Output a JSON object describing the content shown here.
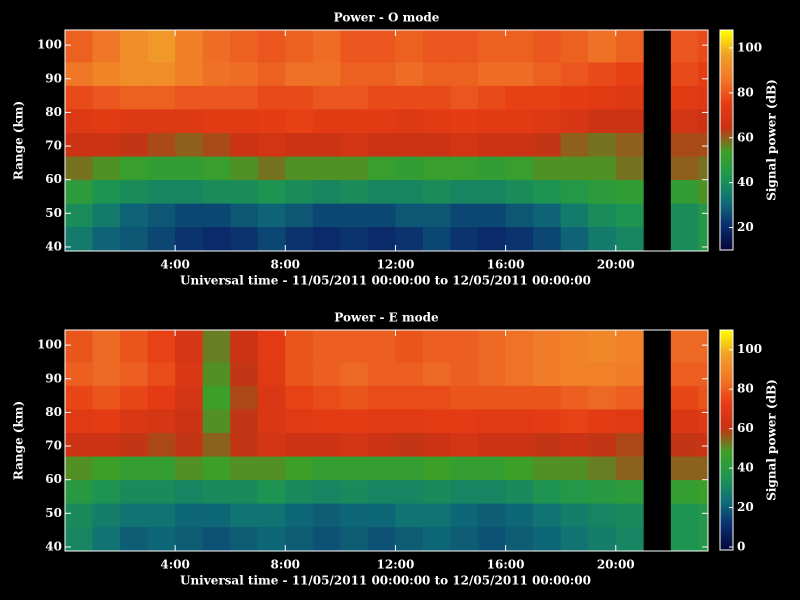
{
  "chart_data": [
    {
      "type": "heatmap",
      "title": "Power - O mode",
      "xlabel": "Universal time - 11/05/2011 00:00:00 to 12/05/2011 00:00:00",
      "ylabel": "Range (km)",
      "colorbar_label": "Signal power (dB)",
      "xlim": [
        0,
        23.35
      ],
      "ylim": [
        38.8,
        104.5
      ],
      "xticks": [
        {
          "value": 4,
          "label": "4:00"
        },
        {
          "value": 8,
          "label": "8:00"
        },
        {
          "value": 12,
          "label": "12:00"
        },
        {
          "value": 16,
          "label": "16:00"
        },
        {
          "value": 20,
          "label": "20:00"
        }
      ],
      "yticks": [
        40,
        50,
        60,
        70,
        80,
        90,
        100
      ],
      "xbins": [
        0,
        1,
        2,
        3,
        4,
        5,
        6,
        7,
        8,
        9,
        10,
        11,
        12,
        13,
        14,
        15,
        16,
        17,
        18,
        19,
        20,
        21,
        22,
        23,
        24
      ],
      "ybins": [
        38.8,
        46,
        53,
        60,
        67,
        74,
        81,
        88,
        95,
        104.5
      ],
      "zlim": [
        10,
        108
      ],
      "zticks": [
        20,
        40,
        60,
        80,
        100
      ],
      "colorscale": [
        "#050535",
        "#0a2d6e",
        "#0f6e78",
        "#1e9650",
        "#3ca028",
        "#c83214",
        "#e63c14",
        "#f07828",
        "#f0a028",
        "#ffff00"
      ],
      "z": [
        [
          35,
          30,
          28,
          25,
          22,
          20,
          22,
          25,
          22,
          20,
          22,
          20,
          22,
          25,
          22,
          20,
          22,
          25,
          30,
          35,
          38,
          null,
          40,
          45
        ],
        [
          40,
          35,
          30,
          28,
          25,
          25,
          28,
          30,
          28,
          25,
          25,
          25,
          28,
          28,
          25,
          25,
          28,
          30,
          35,
          40,
          42,
          null,
          40,
          45
        ],
        [
          48,
          42,
          40,
          38,
          38,
          40,
          40,
          42,
          40,
          38,
          40,
          38,
          38,
          40,
          38,
          38,
          40,
          42,
          45,
          48,
          50,
          null,
          50,
          55
        ],
        [
          58,
          55,
          52,
          50,
          50,
          52,
          55,
          58,
          55,
          55,
          55,
          52,
          50,
          52,
          52,
          50,
          52,
          55,
          55,
          55,
          58,
          null,
          60,
          58
        ],
        [
          66,
          65,
          64,
          62,
          60,
          62,
          65,
          68,
          66,
          65,
          68,
          66,
          65,
          66,
          68,
          66,
          66,
          64,
          60,
          58,
          60,
          null,
          62,
          62
        ],
        [
          72,
          74,
          72,
          72,
          72,
          74,
          74,
          75,
          76,
          74,
          74,
          74,
          72,
          74,
          75,
          74,
          74,
          72,
          70,
          66,
          65,
          null,
          68,
          66
        ],
        [
          78,
          80,
          82,
          82,
          80,
          80,
          80,
          78,
          78,
          80,
          80,
          78,
          78,
          78,
          80,
          78,
          76,
          76,
          75,
          74,
          72,
          null,
          74,
          72
        ],
        [
          86,
          90,
          92,
          92,
          88,
          85,
          84,
          82,
          85,
          85,
          82,
          82,
          84,
          82,
          82,
          84,
          84,
          82,
          80,
          78,
          76,
          null,
          78,
          75
        ],
        [
          82,
          86,
          92,
          95,
          88,
          84,
          82,
          80,
          82,
          84,
          80,
          80,
          82,
          80,
          80,
          82,
          82,
          80,
          82,
          85,
          82,
          null,
          80,
          78
        ]
      ]
    },
    {
      "type": "heatmap",
      "title": "Power - E mode",
      "xlabel": "Universal time - 11/05/2011 00:00:00 to 12/05/2011 00:00:00",
      "ylabel": "Range (km)",
      "colorbar_label": "Signal power (dB)",
      "xlim": [
        0,
        23.35
      ],
      "ylim": [
        38.8,
        104.5
      ],
      "xticks": [
        {
          "value": 4,
          "label": "4:00"
        },
        {
          "value": 8,
          "label": "8:00"
        },
        {
          "value": 12,
          "label": "12:00"
        },
        {
          "value": 16,
          "label": "16:00"
        },
        {
          "value": 20,
          "label": "20:00"
        }
      ],
      "yticks": [
        40,
        50,
        60,
        70,
        80,
        90,
        100
      ],
      "xbins": [
        0,
        1,
        2,
        3,
        4,
        5,
        6,
        7,
        8,
        9,
        10,
        11,
        12,
        13,
        14,
        15,
        16,
        17,
        18,
        19,
        20,
        21,
        22,
        23,
        24
      ],
      "ybins": [
        38.8,
        46,
        53,
        60,
        67,
        74,
        81,
        88,
        95,
        104.5
      ],
      "zlim": [
        -1.5,
        110
      ],
      "zticks": [
        0,
        20,
        40,
        60,
        80,
        100
      ],
      "colorscale": [
        "#050535",
        "#0a2d6e",
        "#0f6e78",
        "#1e9650",
        "#3ca028",
        "#c83214",
        "#e63c14",
        "#f07828",
        "#f0a028",
        "#ffff00"
      ],
      "z": [
        [
          30,
          25,
          20,
          22,
          20,
          18,
          20,
          22,
          20,
          18,
          20,
          18,
          20,
          22,
          20,
          18,
          20,
          22,
          25,
          28,
          30,
          null,
          35,
          38
        ],
        [
          32,
          28,
          25,
          25,
          22,
          22,
          25,
          25,
          22,
          20,
          22,
          22,
          25,
          25,
          22,
          20,
          22,
          25,
          28,
          30,
          32,
          null,
          35,
          38
        ],
        [
          40,
          35,
          32,
          32,
          30,
          32,
          32,
          35,
          32,
          30,
          32,
          30,
          30,
          32,
          30,
          30,
          32,
          35,
          38,
          40,
          42,
          null,
          45,
          48
        ],
        [
          50,
          48,
          45,
          45,
          50,
          48,
          50,
          50,
          48,
          45,
          45,
          45,
          45,
          48,
          45,
          45,
          48,
          50,
          50,
          52,
          55,
          null,
          55,
          55
        ],
        [
          62,
          62,
          60,
          58,
          60,
          55,
          60,
          65,
          62,
          62,
          65,
          62,
          60,
          62,
          65,
          62,
          62,
          60,
          62,
          60,
          58,
          null,
          60,
          62
        ],
        [
          70,
          72,
          68,
          66,
          62,
          50,
          60,
          68,
          70,
          72,
          72,
          70,
          70,
          72,
          72,
          70,
          70,
          72,
          74,
          72,
          70,
          null,
          68,
          70
        ],
        [
          75,
          78,
          75,
          72,
          65,
          48,
          58,
          68,
          74,
          76,
          78,
          76,
          76,
          76,
          78,
          78,
          78,
          78,
          80,
          82,
          80,
          null,
          75,
          78
        ],
        [
          80,
          82,
          80,
          76,
          68,
          50,
          60,
          70,
          78,
          80,
          82,
          80,
          80,
          82,
          80,
          82,
          84,
          86,
          88,
          88,
          86,
          null,
          80,
          80
        ],
        [
          78,
          82,
          78,
          74,
          66,
          52,
          62,
          72,
          78,
          80,
          80,
          80,
          78,
          80,
          80,
          82,
          84,
          86,
          88,
          90,
          88,
          null,
          82,
          82
        ]
      ]
    }
  ]
}
